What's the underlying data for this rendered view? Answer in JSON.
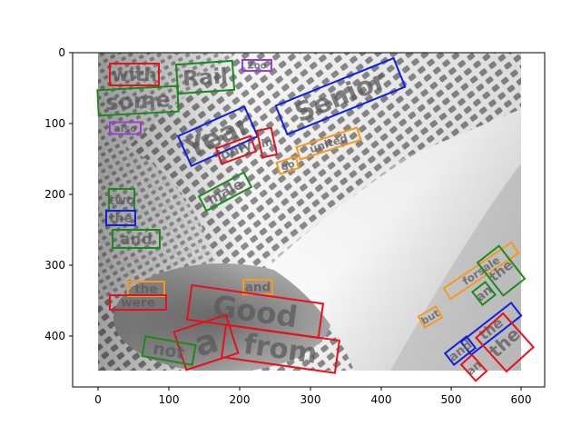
{
  "axes": {
    "x_ticks": [
      "0",
      "100",
      "200",
      "300",
      "400",
      "500",
      "600"
    ],
    "y_ticks": [
      "0",
      "100",
      "200",
      "300",
      "400"
    ]
  },
  "colors": {
    "red": "#e8101a",
    "green": "#1a8a1a",
    "blue": "#1020e0",
    "purple": "#9b3dd6",
    "orange": "#f59a1c"
  },
  "annotations": [
    {
      "text": "with",
      "color": "red"
    },
    {
      "text": "Rail",
      "color": "green"
    },
    {
      "text": "Zoo",
      "color": "purple"
    },
    {
      "text": "some",
      "color": "green"
    },
    {
      "text": "Year",
      "color": "blue"
    },
    {
      "text": "Senior",
      "color": "blue"
    },
    {
      "text": "also",
      "color": "purple"
    },
    {
      "text": "only",
      "color": "red"
    },
    {
      "text": "in",
      "color": "red"
    },
    {
      "text": "united",
      "color": "orange"
    },
    {
      "text": "go",
      "color": "orange"
    },
    {
      "text": "male",
      "color": "green"
    },
    {
      "text": "two",
      "color": "green"
    },
    {
      "text": "the",
      "color": "blue"
    },
    {
      "text": "and",
      "color": "green"
    },
    {
      "text": "and",
      "color": "orange"
    },
    {
      "text": "the",
      "color": "orange"
    },
    {
      "text": "were",
      "color": "red"
    },
    {
      "text": "Good",
      "color": "red"
    },
    {
      "text": "a",
      "color": "red"
    },
    {
      "text": "from",
      "color": "red"
    },
    {
      "text": "not",
      "color": "green"
    },
    {
      "text": "but",
      "color": "orange"
    },
    {
      "text": "forsale",
      "color": "orange"
    },
    {
      "text": "the",
      "color": "green"
    },
    {
      "text": "an",
      "color": "green"
    },
    {
      "text": "the",
      "color": "blue"
    },
    {
      "text": "and",
      "color": "blue"
    },
    {
      "text": "the",
      "color": "red"
    },
    {
      "text": "an",
      "color": "red"
    }
  ]
}
